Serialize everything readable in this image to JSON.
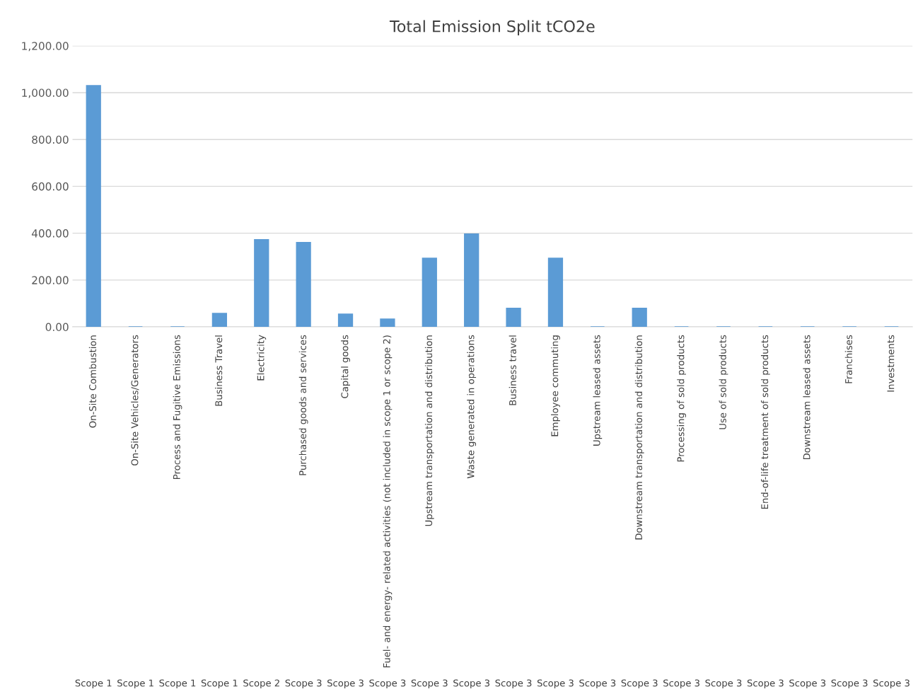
{
  "chart_data": {
    "type": "bar",
    "title": "Total Emission Split tCO2e",
    "categories": [
      "On-Site Combustion",
      "On-Site Vehicles/Generators",
      "Process and Fugitive Emissions",
      "Business Travel",
      "Electricity",
      "Purchased goods and services",
      "Capital goods",
      "Fuel- and energy- related activities (not included in scope 1 or scope 2)",
      "Upstream transportation and distribution",
      "Waste generated in operations",
      "Business travel",
      "Employee commuting",
      "Upstream leased assets",
      "Downstream transportation and distribution",
      "Processing of sold products",
      "Use of sold products",
      "End-of-life treatment of sold products",
      "Downstream leased assets",
      "Franchises",
      "Investments"
    ],
    "values": [
      1030,
      0,
      0,
      57,
      372,
      360,
      54,
      33,
      293,
      396,
      79,
      293,
      0,
      79,
      0,
      0,
      0,
      0,
      0,
      0
    ],
    "color": "#5b9bd5",
    "ylim": [
      0,
      1200
    ],
    "yticks": [
      {
        "value": 0,
        "label": "0.00"
      },
      {
        "value": 200,
        "label": "200.00"
      },
      {
        "value": 400,
        "label": "400.00"
      },
      {
        "value": 600,
        "label": "600.00"
      },
      {
        "value": 800,
        "label": "800.00"
      },
      {
        "value": 1000,
        "label": "1,000.00"
      },
      {
        "value": 1200,
        "label": "1,200.00"
      }
    ],
    "grid": "y",
    "annotations": [
      "Scope 1",
      "Scope 1",
      "Scope 1",
      "Scope 1",
      "Scope 2",
      "Scope 3",
      "Scope 3",
      "Scope 3",
      "Scope 3",
      "Scope 3",
      "Scope 3",
      "Scope 3",
      "Scope 3",
      "Scope 3",
      "Scope 3",
      "Scope 3",
      "Scope 3",
      "Scope 3",
      "Scope 3",
      "Scope 3"
    ]
  }
}
